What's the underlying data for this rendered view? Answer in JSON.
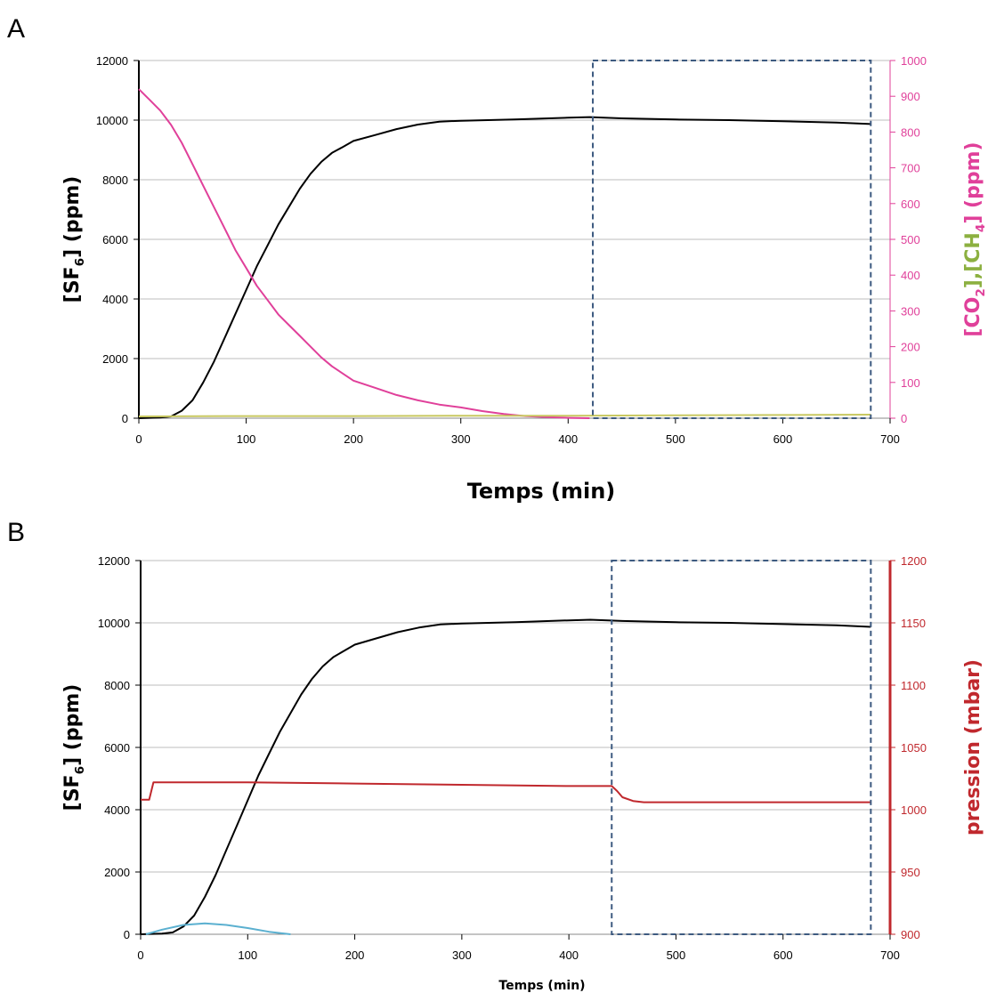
{
  "chart_data": [
    {
      "panel": "A",
      "type": "line",
      "xlabel": "Temps (min)",
      "ylabel": "[SF6] (ppm)",
      "ylabel_right": "[CO2],[CH4] (ppm)",
      "xlim": [
        0,
        700
      ],
      "ylim": [
        0,
        12000
      ],
      "ylim_right": [
        0,
        1000
      ],
      "x_ticks": [
        "0",
        "100",
        "200",
        "300",
        "400",
        "500",
        "600",
        "700"
      ],
      "y_ticks": [
        "0",
        "2000",
        "4000",
        "6000",
        "8000",
        "10000",
        "12000"
      ],
      "y_right_ticks": [
        "0",
        "100",
        "200",
        "300",
        "400",
        "500",
        "600",
        "700",
        "800",
        "900",
        "1000"
      ],
      "grid": true,
      "highlight_box_x": [
        423,
        682
      ],
      "series": [
        {
          "color": "#000000",
          "axis": "left",
          "x": [
            0,
            20,
            30,
            40,
            50,
            60,
            70,
            80,
            90,
            100,
            110,
            120,
            130,
            140,
            150,
            160,
            170,
            180,
            190,
            200,
            220,
            240,
            260,
            280,
            300,
            350,
            400,
            420,
            450,
            500,
            550,
            600,
            650,
            682
          ],
          "y": [
            0,
            20,
            60,
            250,
            600,
            1200,
            1900,
            2700,
            3500,
            4300,
            5100,
            5800,
            6500,
            7100,
            7700,
            8200,
            8600,
            8900,
            9100,
            9300,
            9500,
            9700,
            9850,
            9950,
            9980,
            10020,
            10080,
            10100,
            10060,
            10020,
            10000,
            9960,
            9920,
            9870
          ]
        },
        {
          "color": "#e0409a",
          "axis": "right",
          "x": [
            0,
            10,
            20,
            30,
            40,
            50,
            60,
            70,
            80,
            90,
            100,
            110,
            120,
            130,
            140,
            150,
            160,
            170,
            180,
            190,
            200,
            220,
            240,
            260,
            280,
            300,
            320,
            340,
            360,
            380,
            400,
            420
          ],
          "y": [
            920,
            890,
            860,
            820,
            770,
            710,
            650,
            590,
            530,
            470,
            420,
            370,
            330,
            290,
            260,
            230,
            200,
            170,
            145,
            125,
            105,
            85,
            65,
            50,
            38,
            30,
            20,
            12,
            6,
            3,
            1,
            0
          ]
        },
        {
          "color": "#c8c860",
          "axis": "right",
          "x": [
            0,
            100,
            200,
            300,
            400,
            500,
            600,
            682
          ],
          "y": [
            5,
            6,
            6,
            7,
            7,
            8,
            9,
            10
          ]
        }
      ]
    },
    {
      "panel": "B",
      "type": "line",
      "xlabel": "Temps (min)",
      "ylabel": "[SF6] (ppm)",
      "ylabel_right": "pression (mbar)",
      "xlim": [
        0,
        700
      ],
      "ylim": [
        0,
        12000
      ],
      "ylim_right": [
        900,
        1200
      ],
      "x_ticks": [
        "0",
        "100",
        "200",
        "300",
        "400",
        "500",
        "600",
        "700"
      ],
      "y_ticks": [
        "0",
        "2000",
        "4000",
        "6000",
        "8000",
        "10000",
        "12000"
      ],
      "y_right_ticks": [
        "900",
        "950",
        "1000",
        "1050",
        "1100",
        "1150",
        "1200"
      ],
      "grid": true,
      "highlight_box_x": [
        440,
        682
      ],
      "series": [
        {
          "color": "#000000",
          "axis": "left",
          "x": [
            0,
            20,
            30,
            40,
            50,
            60,
            70,
            80,
            90,
            100,
            110,
            120,
            130,
            140,
            150,
            160,
            170,
            180,
            190,
            200,
            220,
            240,
            260,
            280,
            300,
            350,
            400,
            420,
            450,
            500,
            550,
            600,
            650,
            682
          ],
          "y": [
            0,
            20,
            60,
            250,
            600,
            1200,
            1900,
            2700,
            3500,
            4300,
            5100,
            5800,
            6500,
            7100,
            7700,
            8200,
            8600,
            8900,
            9100,
            9300,
            9500,
            9700,
            9850,
            9950,
            9980,
            10020,
            10080,
            10100,
            10060,
            10020,
            10000,
            9960,
            9920,
            9870
          ]
        },
        {
          "color": "#c0282d",
          "axis": "right",
          "x": [
            0,
            8,
            10,
            12,
            50,
            100,
            200,
            300,
            400,
            440,
            445,
            450,
            460,
            470,
            500,
            600,
            682
          ],
          "y": [
            1008,
            1008,
            1015,
            1022,
            1022,
            1022,
            1021,
            1020,
            1019,
            1019,
            1015,
            1010,
            1007,
            1006,
            1006,
            1006,
            1006
          ]
        },
        {
          "color": "#5bb0d0",
          "axis": "left",
          "x": [
            5,
            20,
            40,
            60,
            80,
            100,
            120,
            140
          ],
          "y": [
            0,
            150,
            300,
            350,
            300,
            200,
            80,
            0
          ]
        }
      ]
    }
  ],
  "colors": {
    "right_axis_A": "#e0409a",
    "co2_label": "#e0409a",
    "ch4_label": "#8cb040",
    "right_axis_B": "#c0282d",
    "box": "#3d5a80"
  }
}
